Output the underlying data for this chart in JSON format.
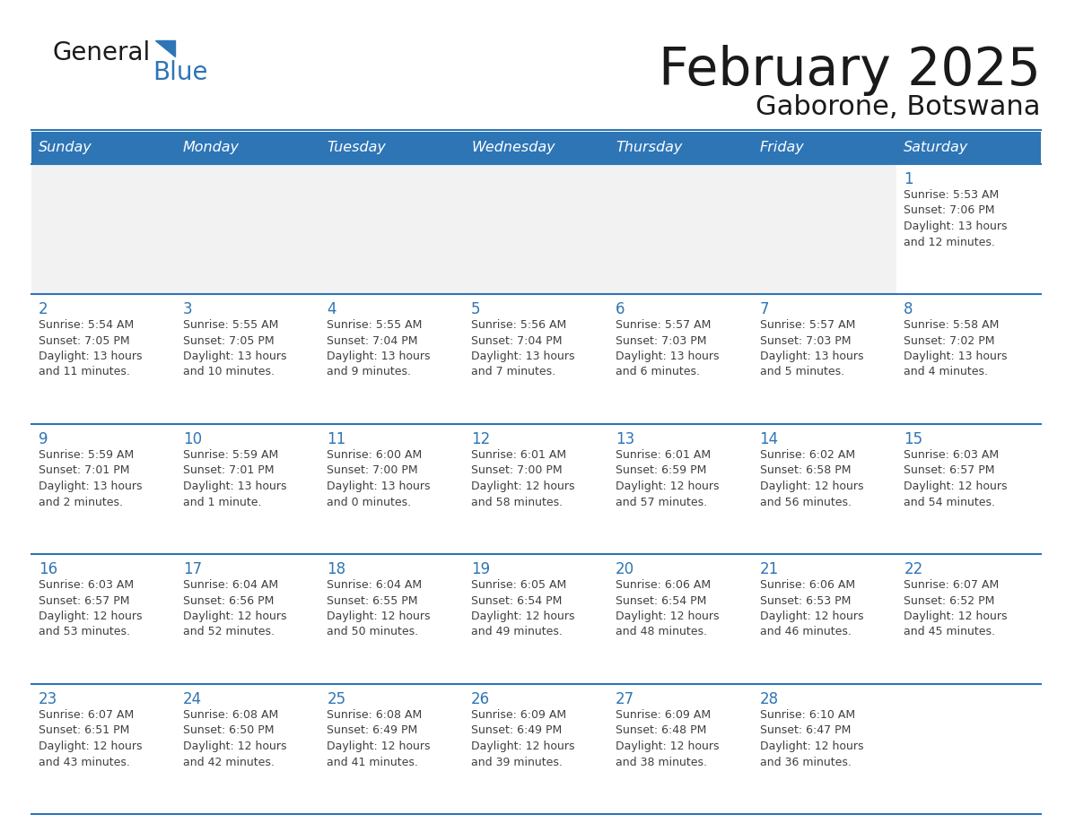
{
  "title": "February 2025",
  "subtitle": "Gaborone, Botswana",
  "days_of_week": [
    "Sunday",
    "Monday",
    "Tuesday",
    "Wednesday",
    "Thursday",
    "Friday",
    "Saturday"
  ],
  "header_bg": "#2E75B6",
  "header_text": "#FFFFFF",
  "cell_bg_normal": "#FFFFFF",
  "cell_bg_alt": "#F2F2F2",
  "border_color": "#2E75B6",
  "title_color": "#1a1a1a",
  "day_num_color": "#2E75B6",
  "text_color": "#404040",
  "logo_general_color": "#1a1a1a",
  "logo_blue_color": "#2E75B6",
  "weeks": [
    [
      {
        "day": null,
        "info": ""
      },
      {
        "day": null,
        "info": ""
      },
      {
        "day": null,
        "info": ""
      },
      {
        "day": null,
        "info": ""
      },
      {
        "day": null,
        "info": ""
      },
      {
        "day": null,
        "info": ""
      },
      {
        "day": 1,
        "info": "Sunrise: 5:53 AM\nSunset: 7:06 PM\nDaylight: 13 hours\nand 12 minutes."
      }
    ],
    [
      {
        "day": 2,
        "info": "Sunrise: 5:54 AM\nSunset: 7:05 PM\nDaylight: 13 hours\nand 11 minutes."
      },
      {
        "day": 3,
        "info": "Sunrise: 5:55 AM\nSunset: 7:05 PM\nDaylight: 13 hours\nand 10 minutes."
      },
      {
        "day": 4,
        "info": "Sunrise: 5:55 AM\nSunset: 7:04 PM\nDaylight: 13 hours\nand 9 minutes."
      },
      {
        "day": 5,
        "info": "Sunrise: 5:56 AM\nSunset: 7:04 PM\nDaylight: 13 hours\nand 7 minutes."
      },
      {
        "day": 6,
        "info": "Sunrise: 5:57 AM\nSunset: 7:03 PM\nDaylight: 13 hours\nand 6 minutes."
      },
      {
        "day": 7,
        "info": "Sunrise: 5:57 AM\nSunset: 7:03 PM\nDaylight: 13 hours\nand 5 minutes."
      },
      {
        "day": 8,
        "info": "Sunrise: 5:58 AM\nSunset: 7:02 PM\nDaylight: 13 hours\nand 4 minutes."
      }
    ],
    [
      {
        "day": 9,
        "info": "Sunrise: 5:59 AM\nSunset: 7:01 PM\nDaylight: 13 hours\nand 2 minutes."
      },
      {
        "day": 10,
        "info": "Sunrise: 5:59 AM\nSunset: 7:01 PM\nDaylight: 13 hours\nand 1 minute."
      },
      {
        "day": 11,
        "info": "Sunrise: 6:00 AM\nSunset: 7:00 PM\nDaylight: 13 hours\nand 0 minutes."
      },
      {
        "day": 12,
        "info": "Sunrise: 6:01 AM\nSunset: 7:00 PM\nDaylight: 12 hours\nand 58 minutes."
      },
      {
        "day": 13,
        "info": "Sunrise: 6:01 AM\nSunset: 6:59 PM\nDaylight: 12 hours\nand 57 minutes."
      },
      {
        "day": 14,
        "info": "Sunrise: 6:02 AM\nSunset: 6:58 PM\nDaylight: 12 hours\nand 56 minutes."
      },
      {
        "day": 15,
        "info": "Sunrise: 6:03 AM\nSunset: 6:57 PM\nDaylight: 12 hours\nand 54 minutes."
      }
    ],
    [
      {
        "day": 16,
        "info": "Sunrise: 6:03 AM\nSunset: 6:57 PM\nDaylight: 12 hours\nand 53 minutes."
      },
      {
        "day": 17,
        "info": "Sunrise: 6:04 AM\nSunset: 6:56 PM\nDaylight: 12 hours\nand 52 minutes."
      },
      {
        "day": 18,
        "info": "Sunrise: 6:04 AM\nSunset: 6:55 PM\nDaylight: 12 hours\nand 50 minutes."
      },
      {
        "day": 19,
        "info": "Sunrise: 6:05 AM\nSunset: 6:54 PM\nDaylight: 12 hours\nand 49 minutes."
      },
      {
        "day": 20,
        "info": "Sunrise: 6:06 AM\nSunset: 6:54 PM\nDaylight: 12 hours\nand 48 minutes."
      },
      {
        "day": 21,
        "info": "Sunrise: 6:06 AM\nSunset: 6:53 PM\nDaylight: 12 hours\nand 46 minutes."
      },
      {
        "day": 22,
        "info": "Sunrise: 6:07 AM\nSunset: 6:52 PM\nDaylight: 12 hours\nand 45 minutes."
      }
    ],
    [
      {
        "day": 23,
        "info": "Sunrise: 6:07 AM\nSunset: 6:51 PM\nDaylight: 12 hours\nand 43 minutes."
      },
      {
        "day": 24,
        "info": "Sunrise: 6:08 AM\nSunset: 6:50 PM\nDaylight: 12 hours\nand 42 minutes."
      },
      {
        "day": 25,
        "info": "Sunrise: 6:08 AM\nSunset: 6:49 PM\nDaylight: 12 hours\nand 41 minutes."
      },
      {
        "day": 26,
        "info": "Sunrise: 6:09 AM\nSunset: 6:49 PM\nDaylight: 12 hours\nand 39 minutes."
      },
      {
        "day": 27,
        "info": "Sunrise: 6:09 AM\nSunset: 6:48 PM\nDaylight: 12 hours\nand 38 minutes."
      },
      {
        "day": 28,
        "info": "Sunrise: 6:10 AM\nSunset: 6:47 PM\nDaylight: 12 hours\nand 36 minutes."
      },
      {
        "day": null,
        "info": ""
      }
    ]
  ]
}
